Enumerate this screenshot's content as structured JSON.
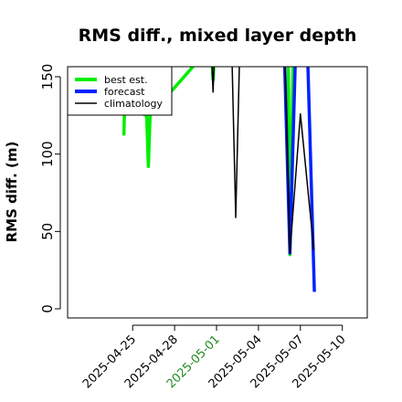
{
  "chart_data": {
    "type": "line",
    "title": "RMS diff., mixed layer depth",
    "xlabel": "",
    "ylabel": "RMS diff. (m)",
    "x_range": [
      "2025-04-21",
      "2025-05-11"
    ],
    "ylim": [
      0,
      155
    ],
    "yticks": [
      0,
      50,
      100,
      150
    ],
    "xticks": [
      {
        "date": "2025-04-25",
        "label": "2025-04-25",
        "color": "#000000"
      },
      {
        "date": "2025-04-28",
        "label": "2025-04-28",
        "color": "#000000"
      },
      {
        "date": "2025-05-01",
        "label": "2025-05-01",
        "color": "#228B22"
      },
      {
        "date": "2025-05-04",
        "label": "2025-05-04",
        "color": "#000000"
      },
      {
        "date": "2025-05-07",
        "label": "2025-05-07",
        "color": "#000000"
      },
      {
        "date": "2025-05-10",
        "label": "2025-05-10",
        "color": "#000000"
      }
    ],
    "legend_position": "top-left",
    "series": [
      {
        "name": "best est.",
        "color": "#00ee00",
        "points": [
          {
            "date": "2025-04-24 09:00",
            "value": 112
          },
          {
            "date": "2025-04-24 10:00",
            "value": 130
          },
          {
            "date": "2025-04-26 00:00",
            "value": 125
          },
          {
            "date": "2025-04-26 03:00",
            "value": 92
          },
          {
            "date": "2025-04-26 06:00",
            "value": 125
          },
          {
            "date": "2025-04-30 15:00",
            "value": 170
          },
          {
            "date": "2025-04-30 18:00",
            "value": 148
          },
          {
            "date": "2025-04-30 21:00",
            "value": 170
          },
          {
            "date": "2025-05-06 03:00",
            "value": 170
          },
          {
            "date": "2025-05-06 06:00",
            "value": 35
          },
          {
            "date": "2025-05-06 12:00",
            "value": 170
          }
        ]
      },
      {
        "name": "forecast",
        "color": "#0022ff",
        "points": [
          {
            "date": "2025-05-05 20:00",
            "value": 170
          },
          {
            "date": "2025-05-06 06:00",
            "value": 36
          },
          {
            "date": "2025-05-06 16:00",
            "value": 170
          },
          {
            "date": "2025-05-07 12:00",
            "value": 170
          },
          {
            "date": "2025-05-08 00:00",
            "value": 11
          }
        ]
      },
      {
        "name": "climatology",
        "color": "#000000",
        "points": [
          {
            "date": "2025-04-30 15:00",
            "value": 170
          },
          {
            "date": "2025-04-30 18:00",
            "value": 140
          },
          {
            "date": "2025-04-30 21:00",
            "value": 170
          },
          {
            "date": "2025-05-02 02:00",
            "value": 170
          },
          {
            "date": "2025-05-02 09:00",
            "value": 59
          },
          {
            "date": "2025-05-02 16:00",
            "value": 170
          },
          {
            "date": "2025-05-05 21:00",
            "value": 170
          },
          {
            "date": "2025-05-06 06:00",
            "value": 36
          },
          {
            "date": "2025-05-07 00:00",
            "value": 126
          },
          {
            "date": "2025-05-07 23:00",
            "value": 38
          }
        ]
      }
    ]
  }
}
